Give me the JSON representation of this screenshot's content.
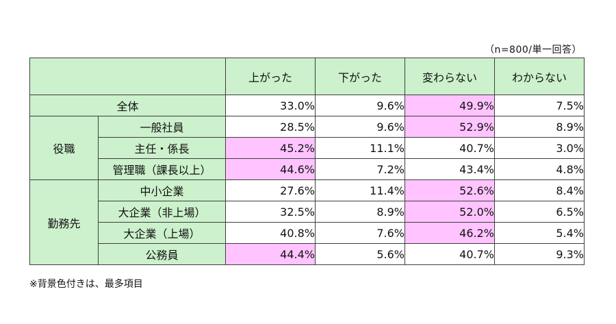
{
  "note_top": "（n=800/単一回答）",
  "columns": [
    "上がった",
    "下がった",
    "変わらない",
    "わからない"
  ],
  "overall": {
    "label": "全体",
    "values": [
      "33.0%",
      "9.6%",
      "49.9%",
      "7.5%"
    ],
    "highlight": [
      false,
      false,
      true,
      false
    ]
  },
  "groups": [
    {
      "label": "役職",
      "rows": [
        {
          "label": "一般社員",
          "values": [
            "28.5%",
            "9.6%",
            "52.9%",
            "8.9%"
          ],
          "highlight": [
            false,
            false,
            true,
            false
          ]
        },
        {
          "label": "主任・係長",
          "values": [
            "45.2%",
            "11.1%",
            "40.7%",
            "3.0%"
          ],
          "highlight": [
            true,
            false,
            false,
            false
          ]
        },
        {
          "label": "管理職（課長以上）",
          "values": [
            "44.6%",
            "7.2%",
            "43.4%",
            "4.8%"
          ],
          "highlight": [
            true,
            false,
            false,
            false
          ]
        }
      ]
    },
    {
      "label": "勤務先",
      "rows": [
        {
          "label": "中小企業",
          "values": [
            "27.6%",
            "11.4%",
            "52.6%",
            "8.4%"
          ],
          "highlight": [
            false,
            false,
            true,
            false
          ]
        },
        {
          "label": "大企業（非上場）",
          "values": [
            "32.5%",
            "8.9%",
            "52.0%",
            "6.5%"
          ],
          "highlight": [
            false,
            false,
            true,
            false
          ]
        },
        {
          "label": "大企業（上場）",
          "values": [
            "40.8%",
            "7.6%",
            "46.2%",
            "5.4%"
          ],
          "highlight": [
            false,
            false,
            true,
            false
          ]
        },
        {
          "label": "公務員",
          "values": [
            "44.4%",
            "5.6%",
            "40.7%",
            "9.3%"
          ],
          "highlight": [
            true,
            false,
            false,
            false
          ]
        }
      ]
    }
  ],
  "highlight_color": "#ffc4ff",
  "header_color": "#ccf1cc",
  "note_bottom": "※背景色付きは、最多項目"
}
